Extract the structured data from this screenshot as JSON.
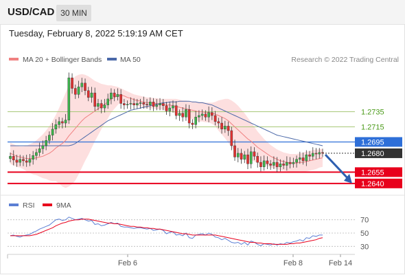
{
  "header": {
    "symbol": "USD/CAD",
    "timeframe": "30 MIN",
    "datetime": "Tuesday, February 8, 2022 5:19:19 AM CET"
  },
  "colors": {
    "up": "#3cb44b",
    "down": "#e03030",
    "band": "#fdd9d9",
    "ma20": "#f08080",
    "ma50": "#4a68a8",
    "resistance": "#a8c878",
    "pivot": "#2e6fd8",
    "support": "#e8001c",
    "current": "#333333",
    "rsi": "#5b7fd4",
    "rsi_ma": "#e8001c"
  },
  "legend": {
    "ma20_label": "MA 20 + Bollinger Bands",
    "ma50_label": "MA 50",
    "credit": "Research © 2022 Trading Central"
  },
  "chart_data": [
    {
      "type": "candlestick",
      "ylim": [
        1.2628,
        1.2792
      ],
      "levels": [
        {
          "value": 1.2735,
          "label": "1.2735",
          "kind": "resistance"
        },
        {
          "value": 1.2715,
          "label": "1.2715",
          "kind": "resistance"
        },
        {
          "value": 1.2695,
          "label": "1.2695",
          "kind": "pivot"
        },
        {
          "value": 1.268,
          "label": "1.2680",
          "kind": "current"
        },
        {
          "value": 1.2655,
          "label": "1.2655",
          "kind": "support"
        },
        {
          "value": 1.264,
          "label": "1.2640",
          "kind": "support"
        }
      ],
      "closes": [
        1.2676,
        1.2671,
        1.2668,
        1.2672,
        1.267,
        1.2668,
        1.2672,
        1.2677,
        1.2681,
        1.2686,
        1.269,
        1.2697,
        1.2704,
        1.2712,
        1.2718,
        1.2722,
        1.272,
        1.2724,
        1.278,
        1.2766,
        1.2758,
        1.2768,
        1.2773,
        1.2763,
        1.2754,
        1.276,
        1.2742,
        1.2746,
        1.274,
        1.2744,
        1.2752,
        1.276,
        1.2755,
        1.2758,
        1.2746,
        1.2744,
        1.2745,
        1.2746,
        1.2744,
        1.2746,
        1.2747,
        1.2745,
        1.2744,
        1.2748,
        1.2742,
        1.2744,
        1.2746,
        1.2743,
        1.2736,
        1.274,
        1.2743,
        1.273,
        1.2733,
        1.2728,
        1.2738,
        1.272,
        1.2718,
        1.2728,
        1.273,
        1.2732,
        1.2728,
        1.2734,
        1.273,
        1.2722,
        1.272,
        1.2712,
        1.2716,
        1.271,
        1.269,
        1.2675,
        1.268,
        1.2672,
        1.2678,
        1.2666,
        1.2682,
        1.2676,
        1.2668,
        1.2662,
        1.267,
        1.2666,
        1.2664,
        1.2668,
        1.2662,
        1.2666,
        1.2664,
        1.2668,
        1.2666,
        1.2668,
        1.2672,
        1.2674,
        1.267,
        1.2678,
        1.2676,
        1.268,
        1.2679,
        1.2681,
        1.268
      ],
      "ma20": [
        1.268,
        1.2678,
        1.2676,
        1.2675,
        1.2674,
        1.2673,
        1.2673,
        1.2673,
        1.2674,
        1.2675,
        1.2676,
        1.2678,
        1.268,
        1.2683,
        1.2687,
        1.269,
        1.2693,
        1.2697,
        1.2703,
        1.2708,
        1.2713,
        1.2718,
        1.2723,
        1.2727,
        1.273,
        1.2733,
        1.2736,
        1.2739,
        1.2742,
        1.2745,
        1.2748,
        1.2752,
        1.2754,
        1.2756,
        1.2757,
        1.2756,
        1.2754,
        1.2753,
        1.2751,
        1.275,
        1.2749,
        1.2748,
        1.2747,
        1.2747,
        1.2746,
        1.2746,
        1.2745,
        1.2745,
        1.2744,
        1.2744,
        1.2743,
        1.2742,
        1.2741,
        1.274,
        1.2739,
        1.2738,
        1.2737,
        1.2736,
        1.2735,
        1.2735,
        1.2734,
        1.2734,
        1.2733,
        1.2732,
        1.273,
        1.2728,
        1.2726,
        1.2723,
        1.2719,
        1.2715,
        1.2711,
        1.2707,
        1.2703,
        1.2699,
        1.2696,
        1.2692,
        1.2688,
        1.2685,
        1.2682,
        1.2679,
        1.2676,
        1.2674,
        1.2672,
        1.267,
        1.2669,
        1.2668,
        1.2667,
        1.2667,
        1.2667,
        1.2668,
        1.2668,
        1.2669,
        1.267,
        1.2671,
        1.2672,
        1.2673,
        1.2674
      ],
      "bb_up": [
        1.2694,
        1.2692,
        1.269,
        1.2689,
        1.2689,
        1.269,
        1.2692,
        1.2694,
        1.2697,
        1.2701,
        1.2705,
        1.271,
        1.2716,
        1.2723,
        1.2731,
        1.274,
        1.275,
        1.276,
        1.277,
        1.2777,
        1.2782,
        1.2784,
        1.2785,
        1.2784,
        1.2782,
        1.2779,
        1.2776,
        1.2774,
        1.2772,
        1.2771,
        1.277,
        1.277,
        1.2769,
        1.2768,
        1.2766,
        1.2764,
        1.2762,
        1.276,
        1.2758,
        1.2757,
        1.2756,
        1.2755,
        1.2754,
        1.2754,
        1.2753,
        1.2753,
        1.2752,
        1.2752,
        1.2752,
        1.2752,
        1.2752,
        1.2752,
        1.2751,
        1.275,
        1.275,
        1.2749,
        1.2749,
        1.2748,
        1.2748,
        1.2748,
        1.2747,
        1.2747,
        1.2747,
        1.2748,
        1.275,
        1.2751,
        1.2752,
        1.2752,
        1.275,
        1.2747,
        1.2743,
        1.2738,
        1.2733,
        1.2727,
        1.2721,
        1.2715,
        1.2709,
        1.2704,
        1.2699,
        1.2695,
        1.2691,
        1.2688,
        1.2685,
        1.2683,
        1.2681,
        1.268,
        1.2679,
        1.2679,
        1.2679,
        1.268,
        1.2681,
        1.2682,
        1.2683,
        1.2684,
        1.2685,
        1.2685,
        1.2686
      ],
      "bb_low": [
        1.2666,
        1.2664,
        1.2662,
        1.2661,
        1.2659,
        1.2656,
        1.2654,
        1.2652,
        1.2651,
        1.2649,
        1.2647,
        1.2646,
        1.2644,
        1.2643,
        1.2643,
        1.264,
        1.2636,
        1.2634,
        1.2636,
        1.2639,
        1.2644,
        1.2652,
        1.2661,
        1.267,
        1.2678,
        1.2687,
        1.2696,
        1.2704,
        1.2712,
        1.2719,
        1.2726,
        1.2734,
        1.2739,
        1.2744,
        1.2748,
        1.2748,
        1.2746,
        1.2746,
        1.2744,
        1.2743,
        1.2742,
        1.2741,
        1.274,
        1.274,
        1.2739,
        1.2739,
        1.2738,
        1.2738,
        1.2736,
        1.2736,
        1.2734,
        1.2732,
        1.2731,
        1.273,
        1.2728,
        1.2727,
        1.2725,
        1.2724,
        1.2722,
        1.2722,
        1.2721,
        1.2721,
        1.2719,
        1.2716,
        1.271,
        1.2705,
        1.27,
        1.2694,
        1.2688,
        1.2683,
        1.2679,
        1.2676,
        1.2673,
        1.2671,
        1.2671,
        1.2669,
        1.2667,
        1.2666,
        1.2665,
        1.2663,
        1.2661,
        1.266,
        1.2659,
        1.2657,
        1.2657,
        1.2656,
        1.2655,
        1.2655,
        1.2655,
        1.2656,
        1.2655,
        1.2656,
        1.2657,
        1.2658,
        1.2659,
        1.2661,
        1.2662
      ],
      "ma50": [
        1.269,
        1.269,
        1.269,
        1.269,
        1.269,
        1.269,
        1.269,
        1.269,
        1.269,
        1.269,
        1.269,
        1.269,
        1.269,
        1.269,
        1.269,
        1.269,
        1.269,
        1.269,
        1.269,
        1.2691,
        1.2693,
        1.2696,
        1.2699,
        1.2702,
        1.2705,
        1.2708,
        1.2711,
        1.2714,
        1.2717,
        1.272,
        1.2723,
        1.2725,
        1.2727,
        1.2729,
        1.2731,
        1.2733,
        1.2735,
        1.2737,
        1.2738,
        1.2739,
        1.274,
        1.2741,
        1.2742,
        1.2743,
        1.2744,
        1.2745,
        1.2746,
        1.2747,
        1.2747,
        1.2748,
        1.2748,
        1.2748,
        1.2749,
        1.2749,
        1.2749,
        1.2749,
        1.2748,
        1.2748,
        1.2747,
        1.2747,
        1.2746,
        1.2745,
        1.2744,
        1.2742,
        1.274,
        1.2738,
        1.2736,
        1.2734,
        1.2732,
        1.273,
        1.2728,
        1.2726,
        1.2724,
        1.2722,
        1.272,
        1.2718,
        1.2716,
        1.2714,
        1.2712,
        1.271,
        1.2708,
        1.2706,
        1.2704,
        1.2703,
        1.2702,
        1.2701,
        1.27,
        1.2699,
        1.2698,
        1.2697,
        1.2696,
        1.2695,
        1.2694,
        1.2693,
        1.2692,
        1.2691,
        1.269
      ],
      "forecast": {
        "from": 1.268,
        "to": 1.264
      }
    },
    {
      "type": "line",
      "legend": [
        {
          "name": "RSI"
        },
        {
          "name": "9MA"
        }
      ],
      "ylim": [
        20,
        80
      ],
      "y_ticks": [
        70,
        50,
        30
      ],
      "x_ticks": [
        "Feb 6",
        "Feb 8",
        "Feb 14"
      ],
      "rsi": [
        46,
        47,
        45,
        44,
        46,
        47,
        48,
        51,
        53,
        56,
        58,
        60,
        62,
        66,
        70,
        71,
        69,
        70,
        74,
        72,
        70,
        71,
        72,
        70,
        68,
        69,
        63,
        64,
        61,
        62,
        64,
        66,
        64,
        65,
        60,
        59,
        59,
        58,
        57,
        58,
        58,
        57,
        56,
        57,
        54,
        55,
        56,
        54,
        49,
        51,
        52,
        47,
        48,
        46,
        50,
        43,
        42,
        47,
        48,
        49,
        47,
        50,
        48,
        44,
        43,
        40,
        42,
        39,
        36,
        35,
        36,
        33,
        36,
        32,
        38,
        36,
        33,
        31,
        34,
        33,
        32,
        34,
        32,
        34,
        33,
        36,
        35,
        37,
        38,
        40,
        38,
        43,
        42,
        46,
        45,
        47,
        47
      ],
      "rsi_ma": [
        46,
        46,
        46,
        46,
        46,
        46,
        46,
        47,
        48,
        50,
        52,
        54,
        56,
        58,
        61,
        63,
        65,
        66,
        68,
        69,
        70,
        70,
        71,
        71,
        71,
        70,
        69,
        68,
        67,
        66,
        65,
        65,
        64,
        64,
        63,
        62,
        61,
        60,
        60,
        59,
        59,
        58,
        58,
        57,
        57,
        56,
        56,
        55,
        54,
        53,
        52,
        51,
        50,
        49,
        49,
        48,
        47,
        47,
        47,
        47,
        47,
        47,
        47,
        47,
        46,
        45,
        44,
        43,
        42,
        41,
        40,
        39,
        38,
        37,
        36,
        36,
        35,
        35,
        34,
        34,
        34,
        33,
        33,
        33,
        33,
        33,
        34,
        34,
        35,
        35,
        36,
        37,
        38,
        39,
        40,
        42,
        43
      ],
      "rsi_level_lines": [
        70,
        50,
        30
      ]
    }
  ]
}
